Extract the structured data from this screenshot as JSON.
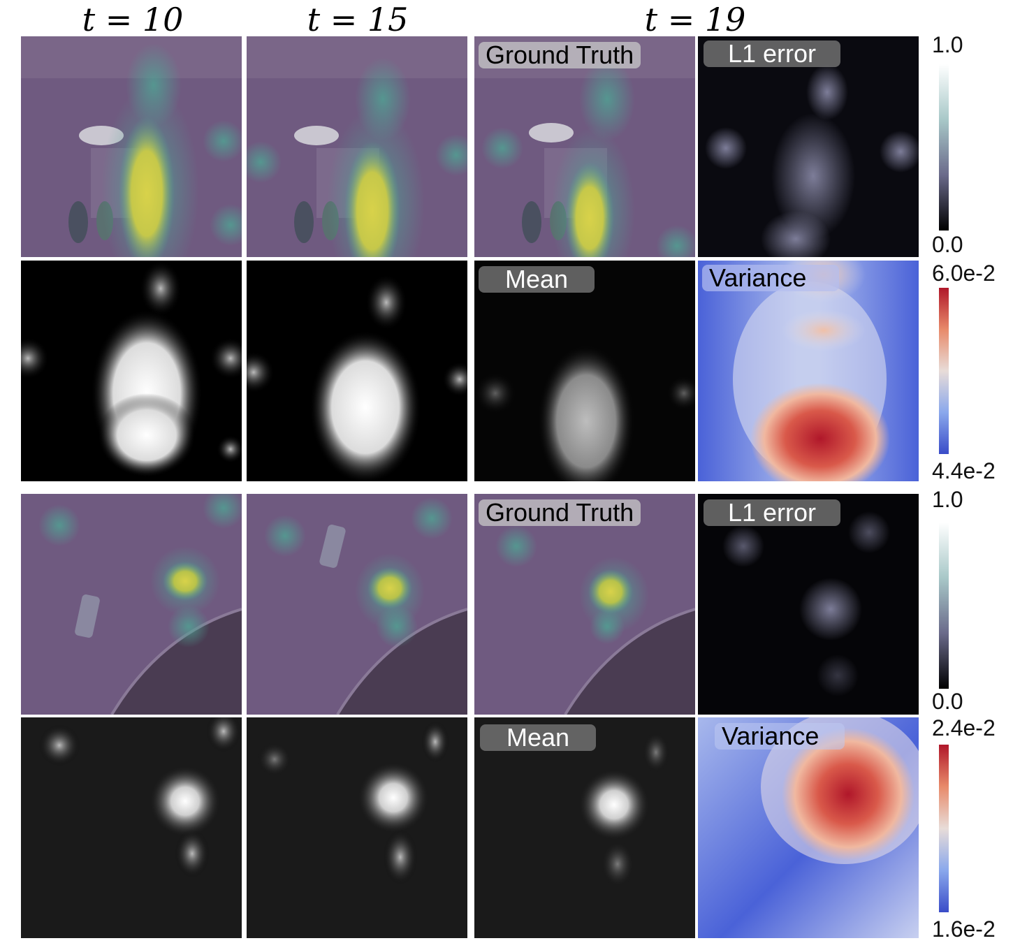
{
  "headers": {
    "t10": "t = 10",
    "t15": "t = 15",
    "t19": "t = 19"
  },
  "group1": {
    "labels": {
      "ground_truth": "Ground Truth",
      "l1_error": "L1 error",
      "mean": "Mean",
      "variance": "Variance"
    },
    "colorbar_error": {
      "max": "1.0",
      "min": "0.0"
    },
    "colorbar_variance": {
      "max": "6.0e-2",
      "min": "4.4e-2"
    }
  },
  "group2": {
    "labels": {
      "ground_truth": "Ground Truth",
      "l1_error": "L1 error",
      "mean": "Mean",
      "variance": "Variance"
    },
    "colorbar_error": {
      "max": "1.0",
      "min": "0.0"
    },
    "colorbar_variance": {
      "max": "2.4e-2",
      "min": "1.6e-2"
    }
  },
  "colors": {
    "overlay_purple": "#6f5a80",
    "density_yellow": "#d8d24a",
    "density_green": "#4fa594",
    "variance_blue": "#4a62d8",
    "variance_red": "#b0172a"
  }
}
